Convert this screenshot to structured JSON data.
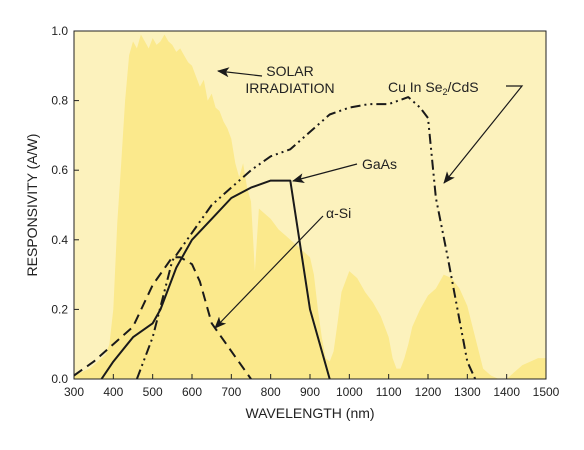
{
  "chart_data": {
    "type": "area",
    "xlabel": "WAVELENGTH (nm)",
    "ylabel": "RESPONSIVITY (A/W)",
    "xlim": [
      300,
      1500
    ],
    "ylim": [
      0.0,
      1.0
    ],
    "x_ticks": [
      "300",
      "400",
      "500",
      "600",
      "700",
      "800",
      "900",
      "1000",
      "1100",
      "1200",
      "1300",
      "1400",
      "1500"
    ],
    "y_ticks": [
      "0.0",
      "0.2",
      "0.4",
      "0.6",
      "0.8",
      "1.0"
    ],
    "grid": false,
    "colors": {
      "plot_background": "#fcf2bd",
      "solar_fill": "#fbe98c",
      "curve": "#1a1a1a"
    },
    "solar_irradiation": {
      "label": "SOLAR IRRADIATION",
      "x": [
        300,
        320,
        340,
        360,
        380,
        390,
        400,
        410,
        420,
        430,
        440,
        450,
        460,
        470,
        480,
        490,
        500,
        510,
        520,
        530,
        540,
        550,
        560,
        570,
        580,
        590,
        600,
        610,
        620,
        630,
        640,
        650,
        660,
        670,
        680,
        690,
        700,
        710,
        720,
        730,
        740,
        750,
        760,
        770,
        780,
        800,
        820,
        840,
        860,
        880,
        900,
        910,
        920,
        930,
        940,
        950,
        960,
        970,
        980,
        1000,
        1020,
        1040,
        1060,
        1080,
        1100,
        1110,
        1120,
        1130,
        1140,
        1150,
        1160,
        1180,
        1200,
        1220,
        1240,
        1260,
        1280,
        1300,
        1320,
        1340,
        1360,
        1380,
        1400,
        1420,
        1440,
        1460,
        1480,
        1500
      ],
      "values": [
        0.01,
        0.02,
        0.03,
        0.05,
        0.07,
        0.1,
        0.2,
        0.45,
        0.62,
        0.8,
        0.93,
        0.97,
        0.95,
        0.99,
        0.97,
        0.95,
        0.98,
        0.96,
        0.97,
        0.99,
        0.97,
        0.96,
        0.94,
        0.95,
        0.93,
        0.91,
        0.9,
        0.87,
        0.84,
        0.86,
        0.8,
        0.82,
        0.78,
        0.77,
        0.74,
        0.72,
        0.69,
        0.62,
        0.58,
        0.62,
        0.55,
        0.51,
        0.31,
        0.49,
        0.48,
        0.46,
        0.43,
        0.41,
        0.39,
        0.37,
        0.35,
        0.3,
        0.2,
        0.12,
        0.06,
        0.05,
        0.08,
        0.16,
        0.25,
        0.31,
        0.29,
        0.25,
        0.22,
        0.18,
        0.12,
        0.06,
        0.03,
        0.03,
        0.06,
        0.1,
        0.15,
        0.2,
        0.24,
        0.26,
        0.3,
        0.29,
        0.26,
        0.21,
        0.12,
        0.03,
        0.01,
        0.0,
        0.0,
        0.02,
        0.04,
        0.05,
        0.06,
        0.06
      ]
    },
    "series": [
      {
        "name": "GaAs",
        "style": "solid",
        "x": [
          370,
          400,
          450,
          500,
          520,
          560,
          600,
          650,
          700,
          750,
          800,
          850,
          900,
          950
        ],
        "values": [
          0.0,
          0.05,
          0.12,
          0.16,
          0.2,
          0.32,
          0.4,
          0.46,
          0.52,
          0.55,
          0.57,
          0.57,
          0.2,
          0.0
        ]
      },
      {
        "name": "α-Si",
        "style": "dashed",
        "x": [
          300,
          350,
          400,
          450,
          500,
          550,
          570,
          600,
          620,
          650,
          700,
          750
        ],
        "values": [
          0.01,
          0.05,
          0.1,
          0.15,
          0.27,
          0.35,
          0.35,
          0.33,
          0.28,
          0.16,
          0.08,
          0.0
        ]
      },
      {
        "name": "Cu In Se2/CdS",
        "style": "dash-dot",
        "x": [
          460,
          500,
          550,
          600,
          650,
          700,
          750,
          800,
          850,
          900,
          950,
          1000,
          1050,
          1100,
          1150,
          1180,
          1200,
          1220,
          1250,
          1300,
          1320
        ],
        "values": [
          0.0,
          0.12,
          0.34,
          0.42,
          0.5,
          0.55,
          0.6,
          0.64,
          0.66,
          0.71,
          0.76,
          0.78,
          0.79,
          0.79,
          0.81,
          0.78,
          0.75,
          0.52,
          0.35,
          0.05,
          0.0
        ]
      }
    ],
    "annotations": [
      {
        "key": "solar-irradiation",
        "lines": [
          "SOLAR",
          "IRRADIATION"
        ]
      },
      {
        "key": "gaas",
        "lines": [
          "GaAs"
        ]
      },
      {
        "key": "a-si",
        "lines": [
          "α-Si"
        ]
      },
      {
        "key": "cuinse2",
        "lines": [
          "Cu In Se",
          "2",
          "/CdS"
        ]
      }
    ]
  }
}
